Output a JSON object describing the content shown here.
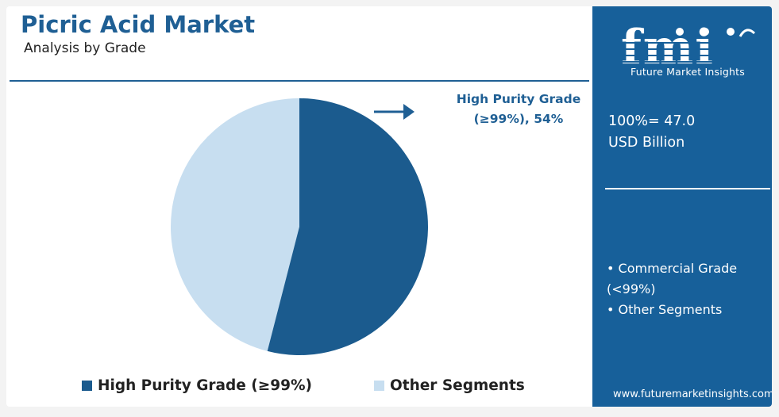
{
  "title": "Picric Acid Market",
  "subtitle": "Analysis by Grade",
  "callout": {
    "line1": "High Purity Grade",
    "line2": "(≥99%), 54%"
  },
  "legend": [
    {
      "label": "High Purity Grade (≥99%)",
      "color": "#1b5b8e"
    },
    {
      "label": "Other Segments",
      "color": "#c7def0"
    }
  ],
  "panel": {
    "logo_text": "fmi",
    "logo_tagline": "Future Market Insights",
    "total_line1": "100%= 47.0",
    "total_line2": "USD Billion",
    "segments": [
      "• Commercial Grade (<99%)",
      "• Other Segments"
    ],
    "website": "www.futuremarketinsights.com",
    "color": "#17609a"
  },
  "chart_data": {
    "type": "pie",
    "categories": [
      "High Purity Grade (≥99%)",
      "Other Segments"
    ],
    "values": [
      54,
      46
    ],
    "colors": [
      "#1b5b8e",
      "#c7def0"
    ],
    "legend_position": "bottom"
  },
  "bottom_bar_colors": [
    "#7fba42",
    "#e2542c",
    "#7b3f97",
    "#2d6fb3"
  ]
}
